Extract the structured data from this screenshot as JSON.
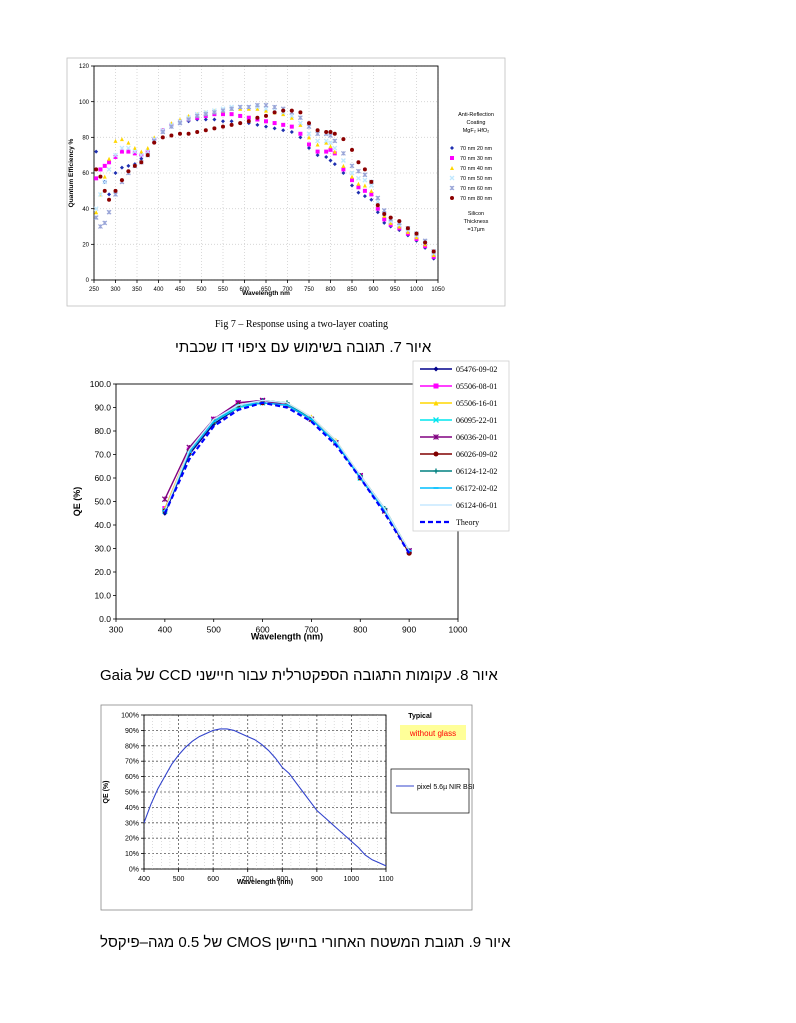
{
  "figures": [
    {
      "caption_en": "Fig 7 – Response using a two-layer coating",
      "caption_he": "איור 7. תגובה בשימוש עם ציפוי דו שכבתי",
      "chart_data": {
        "type": "scatter",
        "xlabel": "Wavelength nm",
        "ylabel": "Quantum Efficiency %",
        "xlim": [
          250,
          1050
        ],
        "ylim": [
          0,
          120
        ],
        "xticks": [
          "250",
          "300",
          "350",
          "400",
          "450",
          "500",
          "550",
          "600",
          "650",
          "700",
          "750",
          "800",
          "850",
          "900",
          "950",
          "1000",
          "1050"
        ],
        "yticks": [
          "0",
          "20",
          "40",
          "60",
          "80",
          "100",
          "120"
        ],
        "grid": true,
        "legend_position": "right",
        "legend_title": [
          "Anti-Reflection",
          "Coating",
          "MgF₂  HfO₂"
        ],
        "legend_footer": [
          "Silicon",
          "Thickness",
          "=17µm"
        ],
        "series": [
          {
            "name": "70 nm 20 nm",
            "color": "#1f2fb0",
            "marker": "diamond",
            "x": [
              255,
              265,
              275,
              285,
              300,
              315,
              330,
              345,
              360,
              375,
              390,
              410,
              430,
              450,
              470,
              490,
              510,
              530,
              550,
              570,
              590,
              610,
              630,
              650,
              670,
              690,
              710,
              730,
              750,
              770,
              790,
              800,
              810,
              830,
              850,
              865,
              880,
              895,
              910,
              925,
              940,
              960,
              980,
              1000,
              1020,
              1040
            ],
            "y": [
              72,
              62,
              55,
              48,
              60,
              63,
              64,
              65,
              68,
              73,
              79,
              83,
              86,
              88,
              89,
              90,
              90,
              90,
              89,
              89,
              88,
              88,
              87,
              86,
              85,
              84,
              83,
              80,
              74,
              70,
              69,
              67,
              65,
              60,
              53,
              49,
              47,
              45,
              38,
              32,
              30,
              28,
              25,
              22,
              18,
              12
            ]
          },
          {
            "name": "70 nm 30 nm",
            "color": "#ff00ff",
            "marker": "square",
            "x": [
              255,
              265,
              275,
              285,
              300,
              315,
              330,
              345,
              360,
              375,
              390,
              410,
              430,
              450,
              470,
              490,
              510,
              530,
              550,
              570,
              590,
              610,
              630,
              650,
              670,
              690,
              710,
              730,
              750,
              770,
              790,
              800,
              810,
              830,
              850,
              865,
              880,
              895,
              910,
              925,
              940,
              960,
              980,
              1000,
              1020,
              1040
            ],
            "y": [
              57,
              62,
              64,
              66,
              69,
              72,
              72,
              71,
              70,
              72,
              79,
              84,
              87,
              89,
              90,
              91,
              92,
              93,
              93,
              93,
              92,
              91,
              90,
              89,
              88,
              87,
              86,
              82,
              76,
              72,
              72,
              73,
              71,
              62,
              56,
              52,
              50,
              48,
              40,
              34,
              31,
              29,
              26,
              23,
              19,
              13
            ]
          },
          {
            "name": "70 nm 40 nm",
            "color": "#ffd700",
            "marker": "triangle",
            "x": [
              255,
              265,
              275,
              285,
              300,
              315,
              330,
              345,
              360,
              375,
              390,
              410,
              430,
              450,
              470,
              490,
              510,
              530,
              550,
              570,
              590,
              610,
              630,
              650,
              670,
              690,
              710,
              730,
              750,
              770,
              790,
              800,
              810,
              830,
              850,
              865,
              880,
              895,
              910,
              925,
              940,
              960,
              980,
              1000,
              1020,
              1040
            ],
            "y": [
              38,
              48,
              58,
              68,
              78,
              79,
              77,
              74,
              72,
              74,
              80,
              84,
              88,
              90,
              92,
              93,
              94,
              95,
              95,
              96,
              96,
              96,
              96,
              95,
              94,
              93,
              91,
              87,
              80,
              76,
              77,
              75,
              72,
              64,
              58,
              54,
              53,
              50,
              42,
              36,
              32,
              30,
              27,
              24,
              20,
              14
            ]
          },
          {
            "name": "70 nm 50 nm",
            "color": "#bfe8ff",
            "marker": "cross",
            "x": [
              255,
              265,
              275,
              285,
              300,
              315,
              330,
              345,
              360,
              375,
              390,
              410,
              430,
              450,
              470,
              490,
              510,
              530,
              550,
              570,
              590,
              610,
              630,
              650,
              670,
              690,
              710,
              730,
              750,
              770,
              790,
              800,
              810,
              830,
              850,
              865,
              880,
              895,
              910,
              925,
              940,
              960,
              980,
              1000,
              1020,
              1040
            ],
            "y": [
              40,
              48,
              55,
              62,
              70,
              74,
              74,
              72,
              70,
              72,
              79,
              84,
              87,
              89,
              91,
              93,
              94,
              95,
              96,
              97,
              97,
              97,
              97,
              96,
              95,
              94,
              92,
              88,
              82,
              78,
              78,
              77,
              74,
              67,
              60,
              57,
              56,
              53,
              44,
              37,
              33,
              31,
              28,
              25,
              21,
              15
            ]
          },
          {
            "name": "70 nm 60 nm",
            "color": "#9aa6d8",
            "marker": "star",
            "x": [
              255,
              265,
              275,
              285,
              300,
              315,
              330,
              345,
              360,
              375,
              390,
              410,
              430,
              450,
              470,
              490,
              510,
              530,
              550,
              570,
              590,
              610,
              630,
              650,
              670,
              690,
              710,
              730,
              750,
              770,
              790,
              800,
              810,
              830,
              850,
              865,
              880,
              895,
              910,
              925,
              940,
              960,
              980,
              1000,
              1020,
              1040
            ],
            "y": [
              35,
              30,
              32,
              38,
              48,
              55,
              60,
              64,
              66,
              70,
              78,
              83,
              86,
              88,
              90,
              92,
              93,
              94,
              95,
              96,
              97,
              97,
              98,
              98,
              97,
              96,
              94,
              91,
              86,
              82,
              82,
              81,
              78,
              71,
              64,
              61,
              59,
              55,
              46,
              39,
              34,
              32,
              29,
              26,
              22,
              16
            ]
          },
          {
            "name": "70 nm 80 nm",
            "color": "#8b0000",
            "marker": "circle",
            "x": [
              255,
              265,
              275,
              285,
              300,
              315,
              330,
              345,
              360,
              375,
              390,
              410,
              430,
              450,
              470,
              490,
              510,
              530,
              550,
              570,
              590,
              610,
              630,
              650,
              670,
              690,
              710,
              730,
              750,
              770,
              790,
              800,
              810,
              830,
              850,
              865,
              880,
              895,
              910,
              925,
              940,
              960,
              980,
              1000,
              1020,
              1040
            ],
            "y": [
              62,
              58,
              50,
              45,
              50,
              56,
              61,
              64,
              66,
              70,
              77,
              80,
              81,
              82,
              82,
              83,
              84,
              85,
              86,
              87,
              88,
              89,
              91,
              92,
              94,
              95,
              95,
              94,
              88,
              84,
              83,
              83,
              82,
              79,
              73,
              66,
              62,
              55,
              42,
              37,
              35,
              33,
              29,
              26,
              21,
              16
            ]
          }
        ]
      }
    },
    {
      "caption_he": "איור 8. עקומות התגובה הספקטרלית עבור חיישני CCD של Gaia",
      "chart_data": {
        "type": "line",
        "xlabel": "Wavelength (nm)",
        "ylabel": "QE (%)",
        "xlim": [
          300,
          1000
        ],
        "ylim": [
          0,
          100
        ],
        "xticks": [
          "300",
          "400",
          "500",
          "600",
          "700",
          "800",
          "900",
          "1000"
        ],
        "yticks": [
          "0.0",
          "10.0",
          "20.0",
          "30.0",
          "40.0",
          "50.0",
          "60.0",
          "70.0",
          "80.0",
          "90.0",
          "100.0"
        ],
        "grid": false,
        "legend_position": "top-right",
        "x": [
          400,
          450,
          500,
          550,
          600,
          650,
          700,
          750,
          800,
          850,
          900
        ],
        "series": [
          {
            "name": "05476-09-02",
            "color": "#00008b",
            "marker": "diamond",
            "y": [
              45,
              70,
              83,
              90,
              92,
              91,
              85,
              75,
              60,
              46,
              29
            ]
          },
          {
            "name": "05506-08-01",
            "color": "#ff00ff",
            "marker": "square",
            "y": [
              47,
              72,
              85,
              92,
              93,
              91,
              85,
              75,
              61,
              46,
              29
            ]
          },
          {
            "name": "05506-16-01",
            "color": "#ffd700",
            "marker": "triangle",
            "y": [
              47,
              72,
              85,
              91,
              93,
              92,
              86,
              76,
              61,
              47,
              29
            ]
          },
          {
            "name": "06095-22-01",
            "color": "#00e5ee",
            "marker": "cross",
            "y": [
              46,
              71,
              84,
              90,
              92,
              91,
              85,
              75,
              60,
              46,
              29
            ]
          },
          {
            "name": "06036-20-01",
            "color": "#800080",
            "marker": "star",
            "y": [
              51,
              73,
              85,
              92,
              93,
              91,
              85,
              75,
              61,
              46,
              29
            ]
          },
          {
            "name": "06026-09-02",
            "color": "#800000",
            "marker": "circle",
            "y": [
              46,
              71,
              84,
              91,
              92,
              91,
              85,
              75,
              60,
              46,
              28
            ]
          },
          {
            "name": "06124-12-02",
            "color": "#008080",
            "marker": "plus",
            "y": [
              46,
              71,
              84,
              91,
              93,
              92,
              85,
              75,
              61,
              47,
              29
            ]
          },
          {
            "name": "06172-02-02",
            "color": "#00bfff",
            "marker": "dash",
            "y": [
              46,
              71,
              84,
              91,
              92,
              91,
              85,
              75,
              60,
              46,
              29
            ]
          },
          {
            "name": "06124-06-01",
            "color": "#c7e9ff",
            "marker": "none",
            "y": [
              46,
              72,
              85,
              91,
              93,
              92,
              86,
              76,
              61,
              47,
              29
            ]
          },
          {
            "name": "Theory",
            "color": "#0000ff",
            "dashed": true,
            "marker": "none",
            "y": [
              45,
              68,
              82,
              89,
              92,
              90,
              84,
              74,
              60,
              45,
              28
            ]
          }
        ]
      }
    },
    {
      "caption_he": "איור 9. תגובת המשטח האחורי בחיישן CMOS של 0.5 מגה–פיקסל",
      "chart_data": {
        "type": "line",
        "xlabel": "Wavelength (nm)",
        "ylabel": "QE (%)",
        "xlim": [
          400,
          1100
        ],
        "ylim": [
          0,
          100
        ],
        "xticks": [
          "400",
          "500",
          "600",
          "700",
          "800",
          "900",
          "1000",
          "1100"
        ],
        "yticks": [
          "0%",
          "10%",
          "20%",
          "30%",
          "40%",
          "50%",
          "60%",
          "70%",
          "80%",
          "90%",
          "100%"
        ],
        "grid": true,
        "legend_position": "right",
        "annotation_title": "Typical",
        "annotation_box": "without glass",
        "annotation_color": "#ff0000",
        "annotation_bg": "#ffff99",
        "series": [
          {
            "name": "pixel 5.6µ NIR BSI",
            "color": "#3344cc",
            "x": [
              400,
              420,
              440,
              460,
              480,
              500,
              520,
              540,
              560,
              580,
              600,
              620,
              640,
              660,
              680,
              700,
              720,
              740,
              760,
              780,
              800,
              820,
              840,
              860,
              880,
              900,
              920,
              940,
              960,
              980,
              1000,
              1020,
              1040,
              1060,
              1080,
              1100
            ],
            "y": [
              30,
              42,
              52,
              60,
              68,
              74,
              79,
              83,
              86,
              88,
              90,
              91,
              91,
              90,
              88,
              86,
              84,
              81,
              77,
              72,
              66,
              62,
              56,
              50,
              44,
              38,
              34,
              30,
              26,
              22,
              18,
              14,
              9,
              6,
              4,
              2
            ]
          }
        ]
      }
    }
  ]
}
